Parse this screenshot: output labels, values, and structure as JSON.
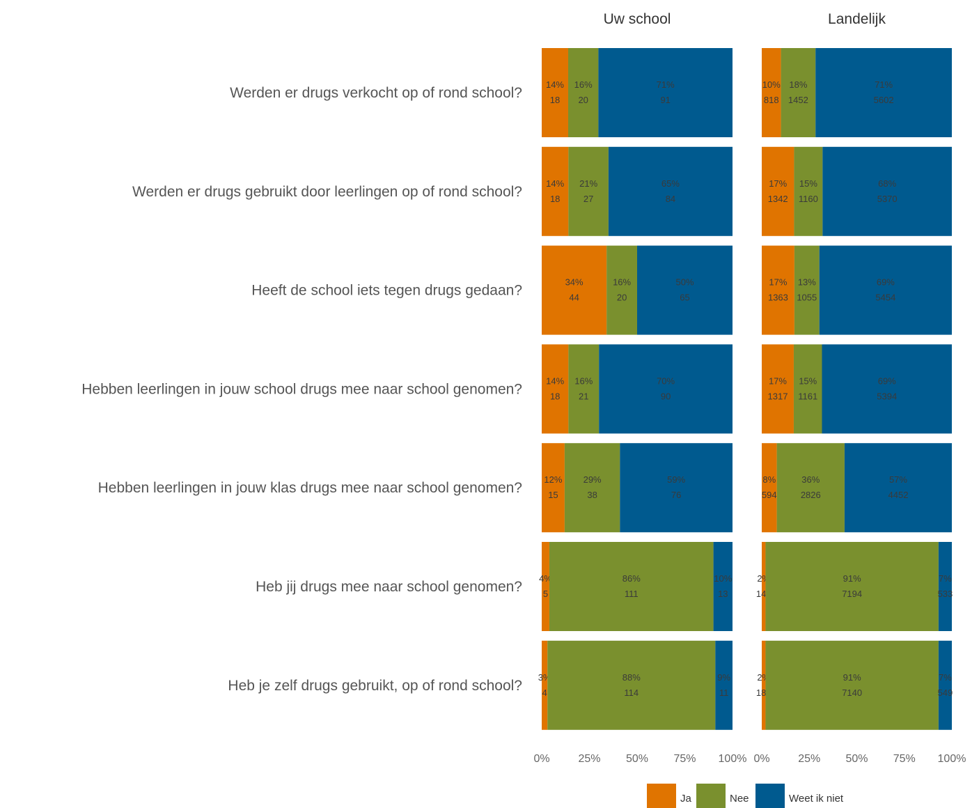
{
  "chart_data": {
    "type": "bar",
    "orientation": "horizontal",
    "stacked": true,
    "panels": [
      "Uw school",
      "Landelijk"
    ],
    "categories": [
      "Werden er drugs verkocht op of rond school?",
      "Werden er drugs gebruikt door leerlingen op of rond school?",
      "Heeft de school iets tegen drugs gedaan?",
      "Hebben leerlingen in jouw school drugs mee naar school genomen?",
      "Hebben leerlingen in jouw klas drugs mee naar school genomen?",
      "Heb jij drugs mee naar school genomen?",
      "Heb je zelf drugs gebruikt, op of rond school?"
    ],
    "series": [
      {
        "name": "Ja",
        "color": "#E07400",
        "uw_school": {
          "percent": [
            14,
            14,
            34,
            14,
            12,
            4,
            3
          ],
          "count": [
            18,
            18,
            44,
            18,
            15,
            5,
            4
          ]
        },
        "landelijk": {
          "percent": [
            10,
            17,
            17,
            17,
            8,
            2,
            2
          ],
          "count": [
            818,
            1342,
            1363,
            1317,
            594,
            145,
            183
          ]
        }
      },
      {
        "name": "Nee",
        "color": "#7A902E",
        "uw_school": {
          "percent": [
            16,
            21,
            16,
            16,
            29,
            86,
            88
          ],
          "count": [
            20,
            27,
            20,
            21,
            38,
            111,
            114
          ]
        },
        "landelijk": {
          "percent": [
            18,
            15,
            13,
            15,
            36,
            91,
            91
          ],
          "count": [
            1452,
            1160,
            1055,
            1161,
            2826,
            7194,
            7140
          ]
        }
      },
      {
        "name": "Weet ik niet",
        "color": "#005A8F",
        "uw_school": {
          "percent": [
            71,
            65,
            50,
            70,
            59,
            10,
            9
          ],
          "count": [
            91,
            84,
            65,
            90,
            76,
            13,
            11
          ]
        },
        "landelijk": {
          "percent": [
            71,
            68,
            69,
            69,
            57,
            7,
            7
          ],
          "count": [
            5602,
            5370,
            5454,
            5394,
            4452,
            533,
            549
          ]
        }
      }
    ],
    "x_ticks": [
      "0%",
      "25%",
      "50%",
      "75%",
      "100%"
    ],
    "xlim": [
      0,
      100
    ],
    "legend_position": "bottom"
  }
}
